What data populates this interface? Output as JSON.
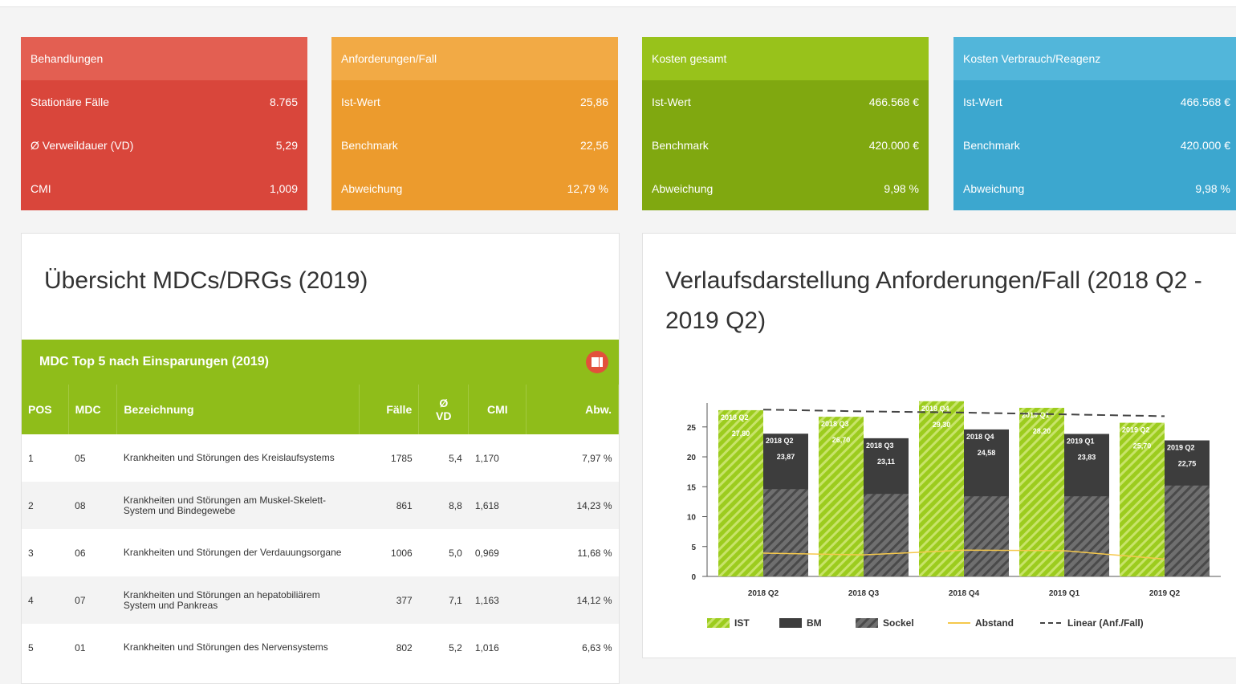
{
  "kpi_cards": [
    {
      "title": "Behandlungen",
      "header_color": "#e35f52",
      "body_color": "#d9463b",
      "rows": [
        {
          "label": "Stationäre Fälle",
          "value": "8.765"
        },
        {
          "label": "Ø Verweildauer (VD)",
          "value": "5,29"
        },
        {
          "label": "CMI",
          "value": "1,009"
        }
      ]
    },
    {
      "title": "Anforderungen/Fall",
      "header_color": "#f2aa45",
      "body_color": "#ec9b2d",
      "rows": [
        {
          "label": "Ist-Wert",
          "value": "25,86"
        },
        {
          "label": "Benchmark",
          "value": "22,56"
        },
        {
          "label": "Abweichung",
          "value": "12,79 %"
        }
      ]
    },
    {
      "title": "Kosten gesamt",
      "header_color": "#98c21b",
      "body_color": "#80a810",
      "rows": [
        {
          "label": "Ist-Wert",
          "value": "466.568 €"
        },
        {
          "label": "Benchmark",
          "value": "420.000 €"
        },
        {
          "label": "Abweichung",
          "value": "9,98 %"
        }
      ]
    },
    {
      "title": "Kosten Verbrauch/Reagenz",
      "header_color": "#52b6da",
      "body_color": "#3ca7cf",
      "rows": [
        {
          "label": "Ist-Wert",
          "value": "466.568 €"
        },
        {
          "label": "Benchmark",
          "value": "420.000 €"
        },
        {
          "label": "Abweichung",
          "value": "9,98 %"
        }
      ]
    }
  ],
  "table": {
    "panel_title": "Übersicht MDCs/DRGs (2019)",
    "title": "MDC Top 5 nach Einsparungen (2019)",
    "columns": [
      "POS",
      "MDC",
      "Bezeichnung",
      "Fälle",
      "Ø\nVD",
      "CMI",
      "Abw."
    ],
    "rows": [
      [
        "1",
        "05",
        "Krankheiten und Störungen des Kreislaufsystems",
        "1785",
        "5,4",
        "1,170",
        "7,97 %"
      ],
      [
        "2",
        "08",
        "Krankheiten und Störungen am Muskel-Skelett-System und Bindegewebe",
        "861",
        "8,8",
        "1,618",
        "14,23 %"
      ],
      [
        "3",
        "06",
        "Krankheiten und Störungen der Verdauungsorgane",
        "1006",
        "5,0",
        "0,969",
        "11,68 %"
      ],
      [
        "4",
        "07",
        "Krankheiten und Störungen an hepatobiliärem System und Pankreas",
        "377",
        "7,1",
        "1,163",
        "14,12 %"
      ],
      [
        "5",
        "01",
        "Krankheiten und Störungen des Nervensystems",
        "802",
        "5,2",
        "1,016",
        "6,63 %"
      ]
    ]
  },
  "chart_data": {
    "type": "bar",
    "title": "Verlaufsdarstellung Anforderungen/Fall (2018 Q2 - 2019 Q2)",
    "y_label": "Anforderungen/Fall",
    "categories": [
      "2018 Q2",
      "2018 Q3",
      "2018 Q4",
      "2019 Q1",
      "2019 Q2"
    ],
    "ylim": [
      0,
      29
    ],
    "yticks": [
      0,
      5,
      10,
      15,
      20,
      25
    ],
    "series": [
      {
        "name": "IST",
        "type": "bar",
        "color": "#9ccc1e",
        "hatched": true,
        "values": [
          27.8,
          26.7,
          29.3,
          28.2,
          25.7
        ],
        "value_labels": [
          "27,80",
          "26,70",
          "29,30",
          "28,20",
          "25,70"
        ]
      },
      {
        "name": "BM",
        "type": "bar",
        "color": "#3d3d3d",
        "values": [
          23.87,
          23.11,
          24.58,
          23.83,
          22.75
        ],
        "value_labels": [
          "23,87",
          "23,11",
          "24,58",
          "23,83",
          "22,75"
        ]
      },
      {
        "name": "Sockel",
        "type": "bar",
        "color": "#6f6f6f",
        "hatched": true,
        "values": [
          14.6,
          13.8,
          13.4,
          13.4,
          15.2
        ]
      },
      {
        "name": "Abstand",
        "type": "line",
        "color": "#f5c84c",
        "values": [
          3.9,
          3.6,
          4.4,
          4.3,
          2.9
        ]
      },
      {
        "name": "Linear (Anf./Fall)",
        "type": "line",
        "color": "#444444",
        "dashed": true,
        "values": [
          27.9,
          27.6,
          27.4,
          27.1,
          26.8
        ]
      }
    ]
  }
}
